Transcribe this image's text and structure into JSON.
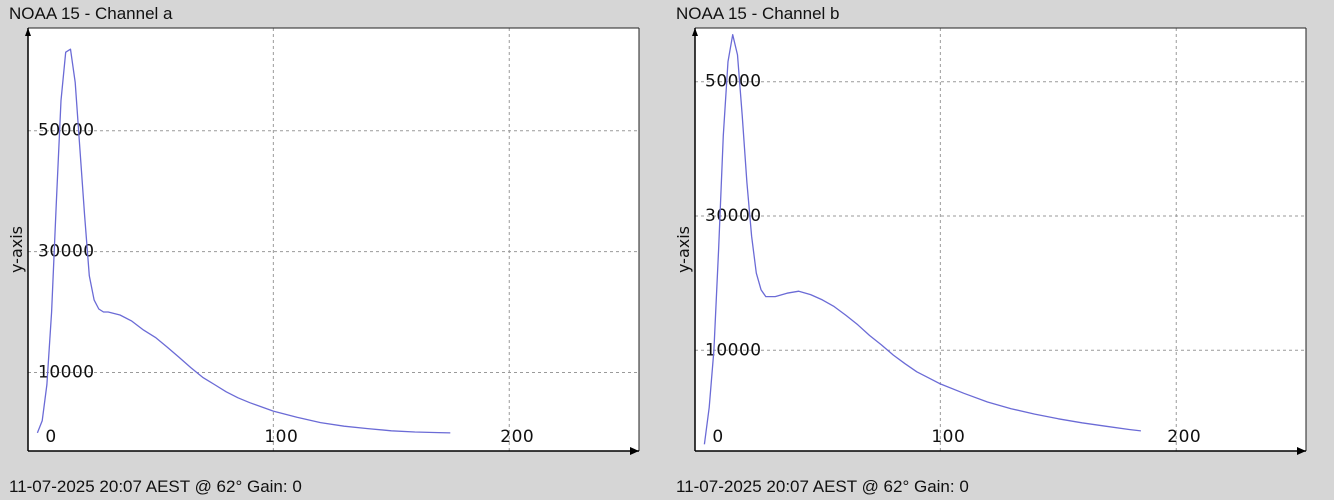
{
  "panels": [
    {
      "title": "NOAA 15 - Channel a",
      "footer": "11-07-2025 20:07 AEST @ 62° Gain: 0"
    },
    {
      "title": "NOAA 15 - Channel b",
      "footer": "11-07-2025 20:07 AEST @ 62° Gain: 0"
    }
  ],
  "colors": {
    "line": "#6b6bd6",
    "grid": "#9a9a9a",
    "axis": "#000000",
    "plot_bg": "#ffffff",
    "page_bg": "#d6d6d6"
  },
  "chart_data": [
    {
      "type": "line",
      "title": "NOAA 15 - Channel a",
      "xlabel": "",
      "ylabel": "y-axis",
      "xlim": [
        -4,
        255
      ],
      "ylim": [
        -3000,
        67000
      ],
      "x_ticks": [
        0,
        100,
        200
      ],
      "y_ticks": [
        10000,
        30000,
        50000
      ],
      "grid": true,
      "series": [
        {
          "x": [
            0,
            2,
            4,
            6,
            8,
            10,
            12,
            14,
            16,
            18,
            20,
            22,
            24,
            26,
            28,
            30,
            35,
            40,
            45,
            50,
            55,
            60,
            65,
            70,
            75,
            80,
            85,
            90,
            95,
            100,
            110,
            120,
            130,
            140,
            150,
            160,
            170,
            175
          ],
          "y": [
            0,
            2000,
            8000,
            20000,
            38000,
            55000,
            63000,
            63500,
            58000,
            47000,
            36000,
            26000,
            22000,
            20500,
            20000,
            20000,
            19500,
            18500,
            17000,
            15800,
            14200,
            12500,
            10800,
            9200,
            8000,
            6800,
            5800,
            5000,
            4300,
            3600,
            2600,
            1700,
            1100,
            700,
            350,
            150,
            50,
            0
          ]
        }
      ]
    },
    {
      "type": "line",
      "title": "NOAA 15 - Channel b",
      "xlabel": "",
      "ylabel": "y-axis",
      "xlim": [
        -4,
        255
      ],
      "ylim": [
        -5000,
        58000
      ],
      "x_ticks": [
        0,
        100,
        200
      ],
      "y_ticks": [
        10000,
        30000,
        50000
      ],
      "grid": true,
      "series": [
        {
          "x": [
            0,
            2,
            4,
            6,
            8,
            10,
            12,
            14,
            16,
            18,
            20,
            22,
            24,
            26,
            28,
            30,
            35,
            40,
            45,
            50,
            55,
            60,
            65,
            70,
            75,
            80,
            85,
            90,
            95,
            100,
            110,
            120,
            130,
            140,
            150,
            160,
            170,
            180,
            185
          ],
          "y": [
            -4000,
            1500,
            10000,
            25000,
            42000,
            53000,
            57000,
            54000,
            45000,
            35000,
            27000,
            21500,
            19000,
            18000,
            18000,
            18000,
            18500,
            18800,
            18300,
            17500,
            16500,
            15200,
            13800,
            12200,
            10800,
            9300,
            8000,
            6800,
            5900,
            5000,
            3600,
            2300,
            1300,
            500,
            -200,
            -800,
            -1300,
            -1800,
            -2000
          ]
        }
      ]
    }
  ]
}
